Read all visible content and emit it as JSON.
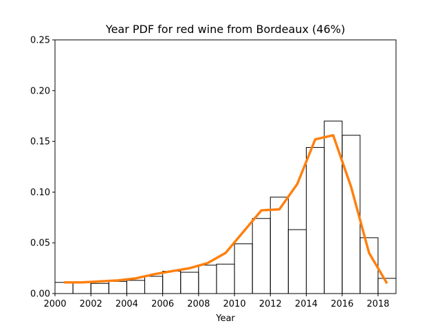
{
  "chart_data": {
    "type": "line",
    "title": "Year PDF for red wine from Bordeaux (46%)",
    "xlabel": "Year",
    "ylabel": "",
    "xlim": [
      2000,
      2019
    ],
    "ylim": [
      0,
      0.25
    ],
    "xticks": [
      2000,
      2002,
      2004,
      2006,
      2008,
      2010,
      2012,
      2014,
      2016,
      2018
    ],
    "xtick_labels": [
      "2000",
      "2002",
      "2004",
      "2006",
      "2008",
      "2010",
      "2012",
      "2014",
      "2016",
      "2018"
    ],
    "yticks": [
      0,
      0.05,
      0.1,
      0.15,
      0.2,
      0.25
    ],
    "ytick_labels": [
      "0.00",
      "0.05",
      "0.10",
      "0.15",
      "0.20",
      "0.25"
    ],
    "grid": false,
    "histogram": {
      "name": "",
      "color": "#000000",
      "bins": [
        {
          "x0": 2000,
          "x1": 2001,
          "y": 0.011
        },
        {
          "x0": 2001,
          "x1": 2002,
          "y": 0.011
        },
        {
          "x0": 2002,
          "x1": 2003,
          "y": 0.01
        },
        {
          "x0": 2003,
          "x1": 2004,
          "y": 0.012
        },
        {
          "x0": 2004,
          "x1": 2005,
          "y": 0.013
        },
        {
          "x0": 2005,
          "x1": 2006,
          "y": 0.017
        },
        {
          "x0": 2006,
          "x1": 2007,
          "y": 0.022
        },
        {
          "x0": 2007,
          "x1": 2008,
          "y": 0.021
        },
        {
          "x0": 2008,
          "x1": 2009,
          "y": 0.028
        },
        {
          "x0": 2009,
          "x1": 2010,
          "y": 0.029
        },
        {
          "x0": 2010,
          "x1": 2011,
          "y": 0.049
        },
        {
          "x0": 2011,
          "x1": 2012,
          "y": 0.074
        },
        {
          "x0": 2012,
          "x1": 2013,
          "y": 0.095
        },
        {
          "x0": 2013,
          "x1": 2014,
          "y": 0.063
        },
        {
          "x0": 2014,
          "x1": 2015,
          "y": 0.144
        },
        {
          "x0": 2015,
          "x1": 2016,
          "y": 0.17
        },
        {
          "x0": 2016,
          "x1": 2017,
          "y": 0.156
        },
        {
          "x0": 2017,
          "x1": 2018,
          "y": 0.055
        },
        {
          "x0": 2018,
          "x1": 2019,
          "y": 0.015
        }
      ]
    },
    "series": [
      {
        "name": "",
        "color": "#ff7f0e",
        "x": [
          2000.5,
          2001.5,
          2002.5,
          2003.5,
          2004.5,
          2005.5,
          2006.5,
          2007.5,
          2008.5,
          2009.5,
          2010.5,
          2011.5,
          2012.5,
          2013.5,
          2014.5,
          2015.5,
          2016.5,
          2017.5,
          2018.5
        ],
        "y": [
          0.011,
          0.011,
          0.012,
          0.013,
          0.015,
          0.019,
          0.022,
          0.025,
          0.03,
          0.04,
          0.061,
          0.082,
          0.083,
          0.108,
          0.152,
          0.156,
          0.105,
          0.04,
          0.01
        ]
      }
    ]
  }
}
